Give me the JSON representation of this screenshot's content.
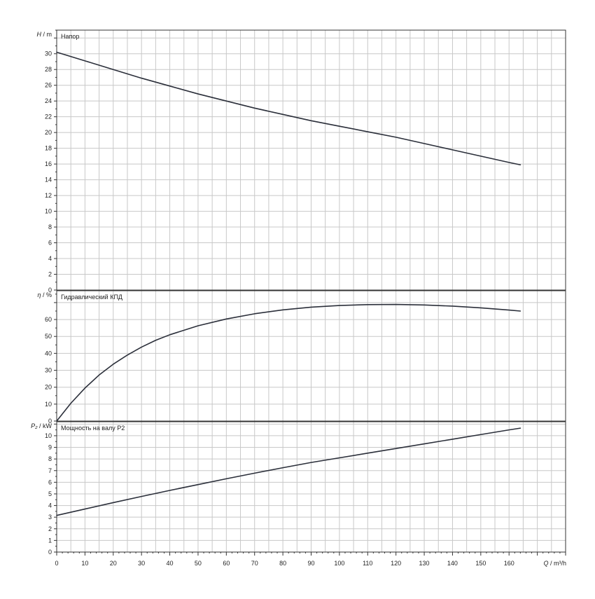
{
  "chart_data": [
    {
      "type": "line",
      "title": "Напор",
      "ylabel": "H / m",
      "ylabel_var": "H",
      "ylabel_unit": "m",
      "xlim": [
        0,
        180
      ],
      "ylim": [
        0,
        33
      ],
      "yticks": [
        0,
        2,
        4,
        6,
        8,
        10,
        12,
        14,
        16,
        18,
        20,
        22,
        24,
        26,
        28,
        30
      ],
      "grid": true,
      "series": [
        {
          "x": [
            0,
            10,
            20,
            30,
            40,
            50,
            60,
            70,
            80,
            90,
            100,
            110,
            120,
            130,
            140,
            150,
            160,
            164
          ],
          "y": [
            30.2,
            29.1,
            28.0,
            26.9,
            25.9,
            24.9,
            24.0,
            23.1,
            22.3,
            21.5,
            20.8,
            20.1,
            19.4,
            18.6,
            17.8,
            17.0,
            16.2,
            15.9
          ]
        }
      ]
    },
    {
      "type": "line",
      "title": "Гидравлический КПД",
      "ylabel": "η / %",
      "ylabel_var": "η",
      "ylabel_unit": "%",
      "xlim": [
        0,
        180
      ],
      "ylim": [
        0,
        77
      ],
      "yticks": [
        0,
        10,
        20,
        30,
        40,
        50,
        60
      ],
      "grid": true,
      "series": [
        {
          "x": [
            0,
            5,
            10,
            15,
            20,
            25,
            30,
            35,
            40,
            50,
            60,
            70,
            80,
            90,
            100,
            110,
            120,
            130,
            140,
            150,
            160,
            164
          ],
          "y": [
            0,
            10.5,
            19.5,
            27.2,
            33.6,
            39.0,
            43.7,
            47.7,
            51.0,
            56.3,
            60.3,
            63.4,
            65.7,
            67.3,
            68.3,
            68.8,
            68.9,
            68.6,
            67.9,
            66.9,
            65.6,
            65.0
          ]
        }
      ]
    },
    {
      "type": "line",
      "title": "Мощность на валу P2",
      "ylabel": "P₂ / kW",
      "ylabel_var": "P₂",
      "ylabel_unit": "kW",
      "xlabel": "Q / m³/h",
      "xlabel_var": "Q",
      "xlabel_unit": "m³/h",
      "xlim": [
        0,
        180
      ],
      "xticks": [
        0,
        10,
        20,
        30,
        40,
        50,
        60,
        70,
        80,
        90,
        100,
        110,
        120,
        130,
        140,
        150,
        160
      ],
      "ylim": [
        0,
        11.2
      ],
      "yticks": [
        0,
        1,
        2,
        3,
        4,
        5,
        6,
        7,
        8,
        9,
        10
      ],
      "grid": true,
      "series": [
        {
          "x": [
            0,
            10,
            20,
            30,
            40,
            50,
            60,
            70,
            80,
            90,
            100,
            110,
            120,
            130,
            140,
            150,
            160,
            164
          ],
          "y": [
            3.15,
            3.7,
            4.25,
            4.78,
            5.3,
            5.8,
            6.3,
            6.78,
            7.25,
            7.7,
            8.1,
            8.5,
            8.9,
            9.3,
            9.7,
            10.1,
            10.5,
            10.65
          ]
        }
      ]
    }
  ]
}
